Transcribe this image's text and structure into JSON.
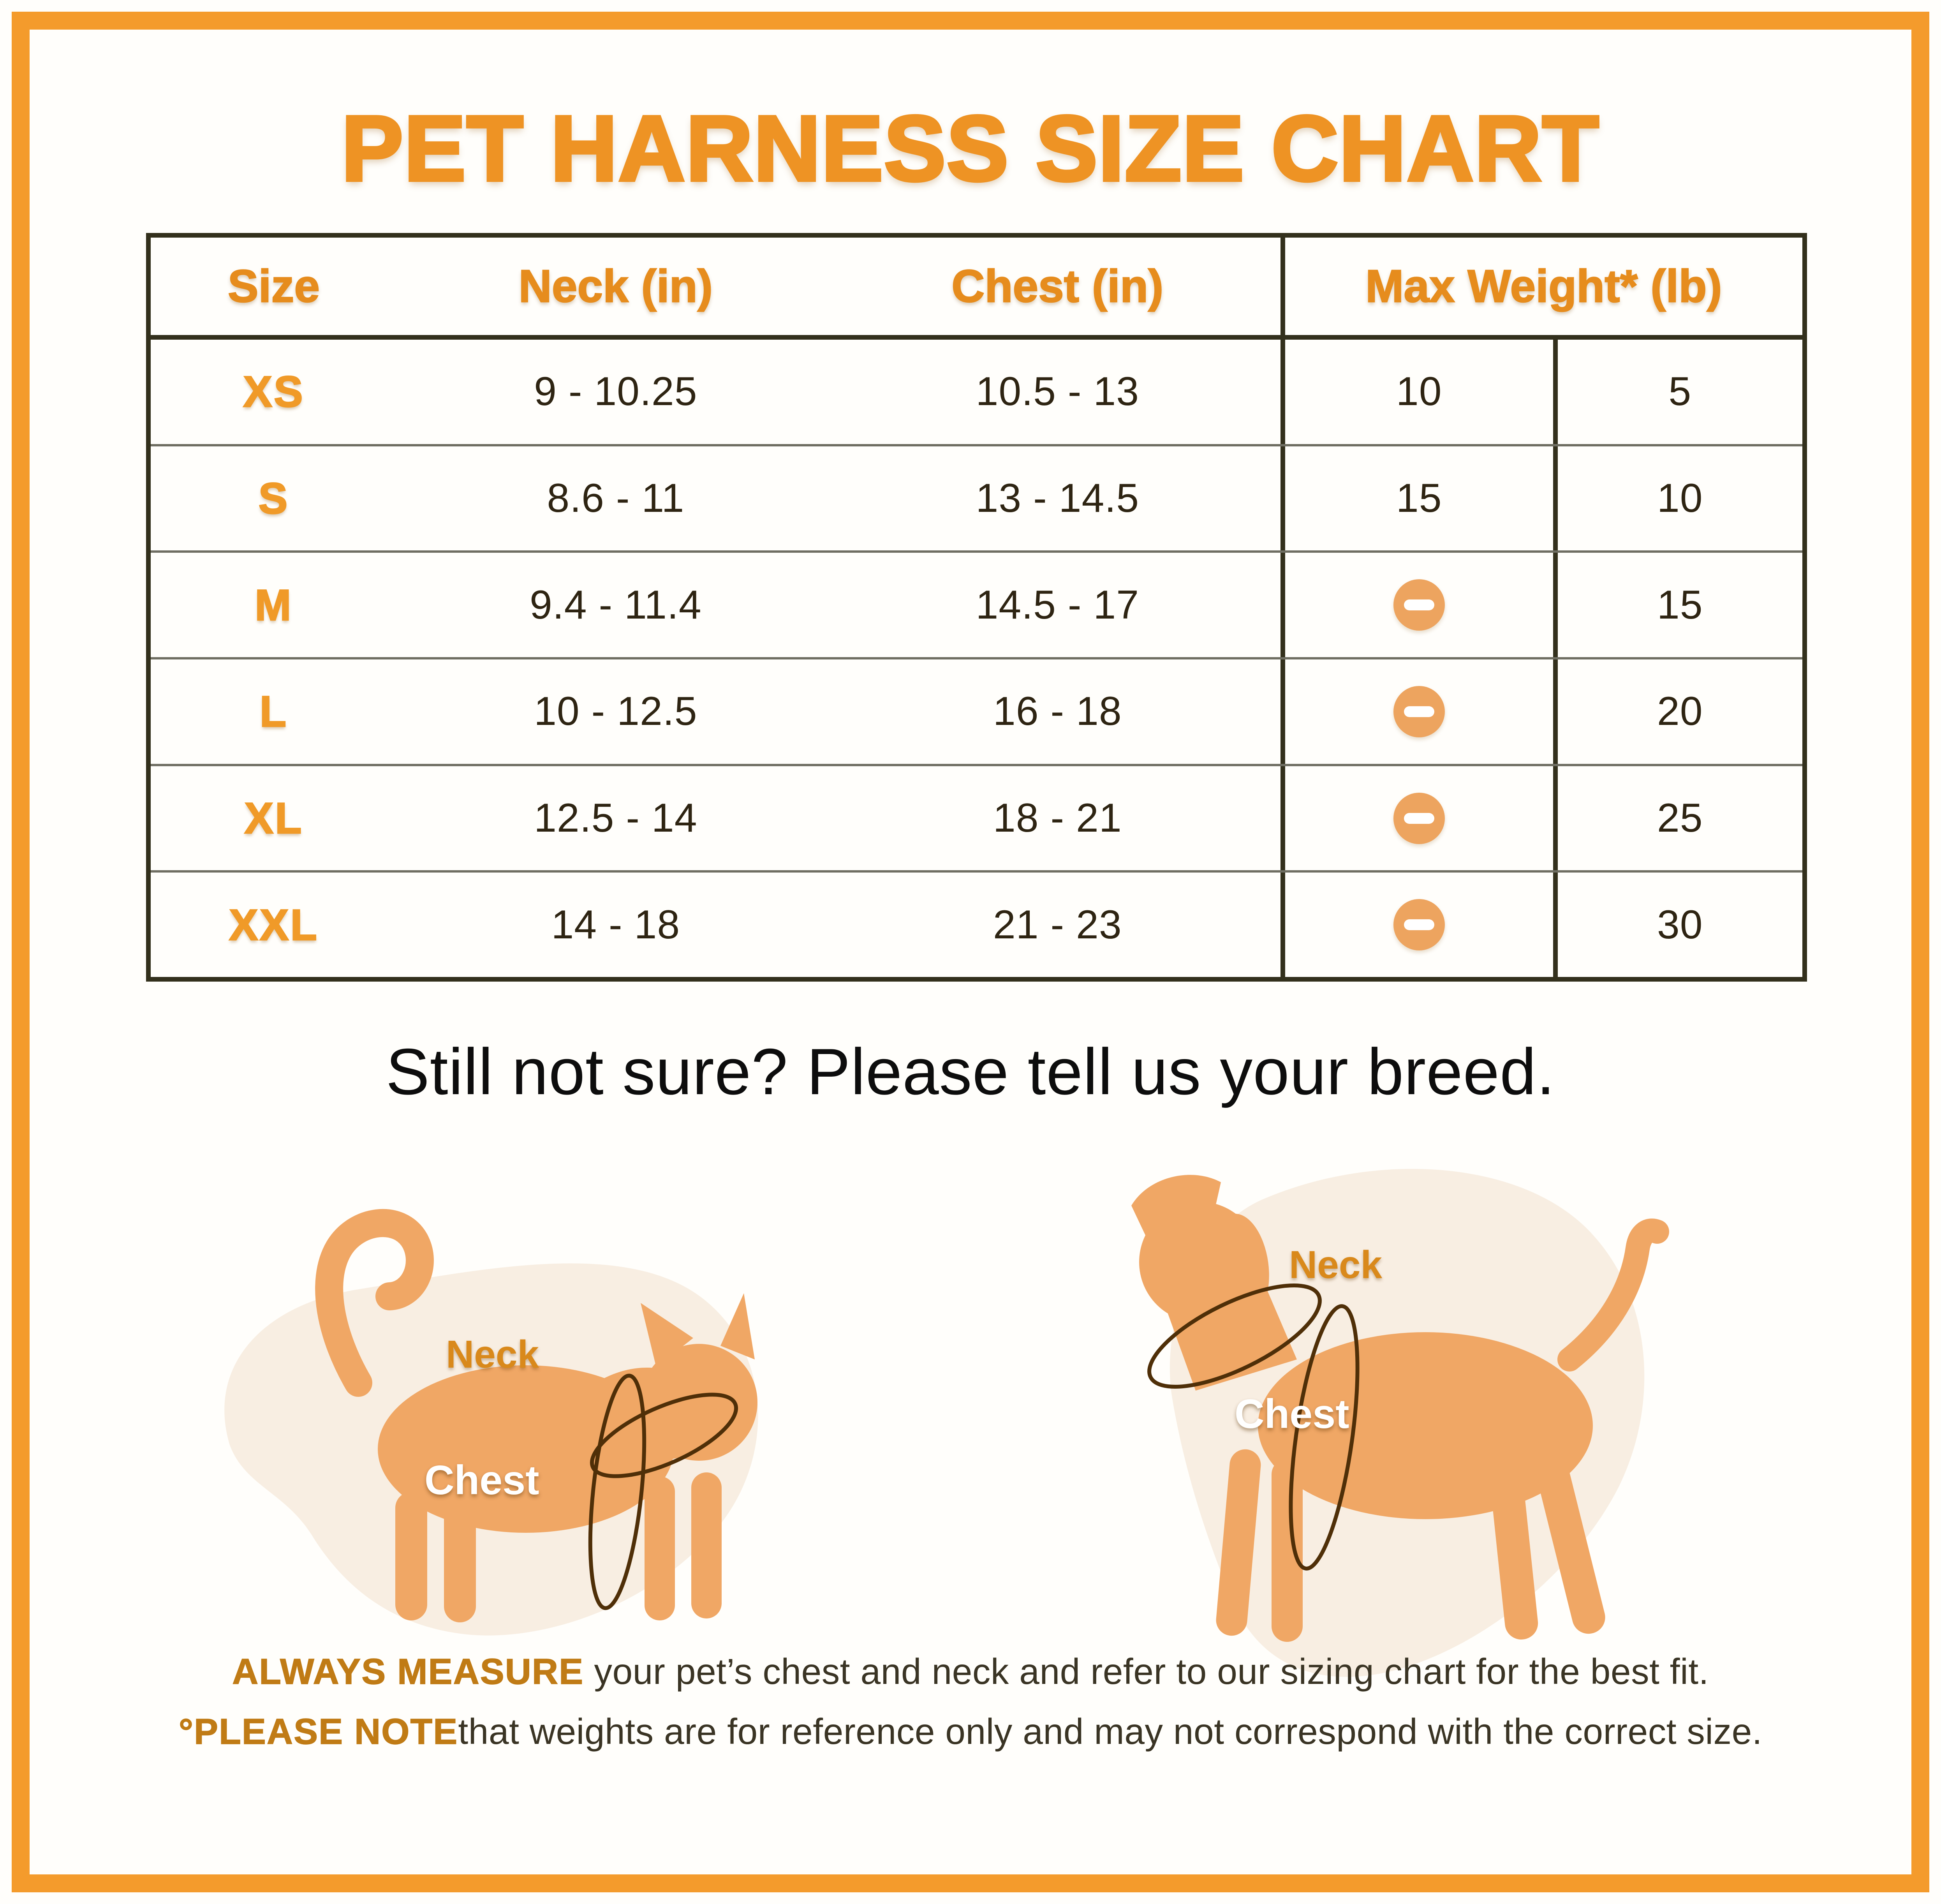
{
  "title": "PET HARNESS SIZE CHART",
  "table": {
    "headers": [
      "Size",
      "Neck (in)",
      "Chest (in)",
      "Max Weight* (lb)"
    ],
    "rows": [
      {
        "size": "XS",
        "neck": "9 - 10.25",
        "chest": "10.5 - 13",
        "weight_primary": "10",
        "weight_secondary": "5"
      },
      {
        "size": "S",
        "neck": "8.6 - 11",
        "chest": "13 - 14.5",
        "weight_primary": "15",
        "weight_secondary": "10"
      },
      {
        "size": "M",
        "neck": "9.4 - 11.4",
        "chest": "14.5 - 17",
        "weight_primary": "minus-icon",
        "weight_secondary": "15"
      },
      {
        "size": "L",
        "neck": "10 - 12.5",
        "chest": "16 - 18",
        "weight_primary": "minus-icon",
        "weight_secondary": "20"
      },
      {
        "size": "XL",
        "neck": "12.5 - 14",
        "chest": "18 - 21",
        "weight_primary": "minus-icon",
        "weight_secondary": "25"
      },
      {
        "size": "XXL",
        "neck": "14 - 18",
        "chest": "21 - 23",
        "weight_primary": "minus-icon",
        "weight_secondary": "30"
      }
    ]
  },
  "subtitle": "Still not sure? Please tell us your breed.",
  "figures": {
    "cat": {
      "neck_label": "Neck",
      "chest_label": "Chest"
    },
    "dog": {
      "neck_label": "Neck",
      "chest_label": "Chest"
    }
  },
  "footnotes": {
    "line1_bold": "ALWAYS MEASURE",
    "line1_rest": " your pet’s chest and neck and refer to our sizing chart for the best fit.",
    "line2_bold": "°PLEASE NOTE",
    "line2_rest": "that weights are for reference only and may not correspond with the correct size."
  },
  "colors": {
    "accent_orange": "#ee9324",
    "frame_orange": "#f49b2c",
    "size_label_orange": "#f09a28",
    "minus_icon_orange": "#eda45f",
    "silhouette_orange": "#f0a765",
    "blob_cream": "#f8eee2",
    "measure_line_brown": "#4f2f08",
    "table_line_dark": "#33301c",
    "text_dark": "#2e2412",
    "footnote_bold_orange": "#c07b15"
  }
}
